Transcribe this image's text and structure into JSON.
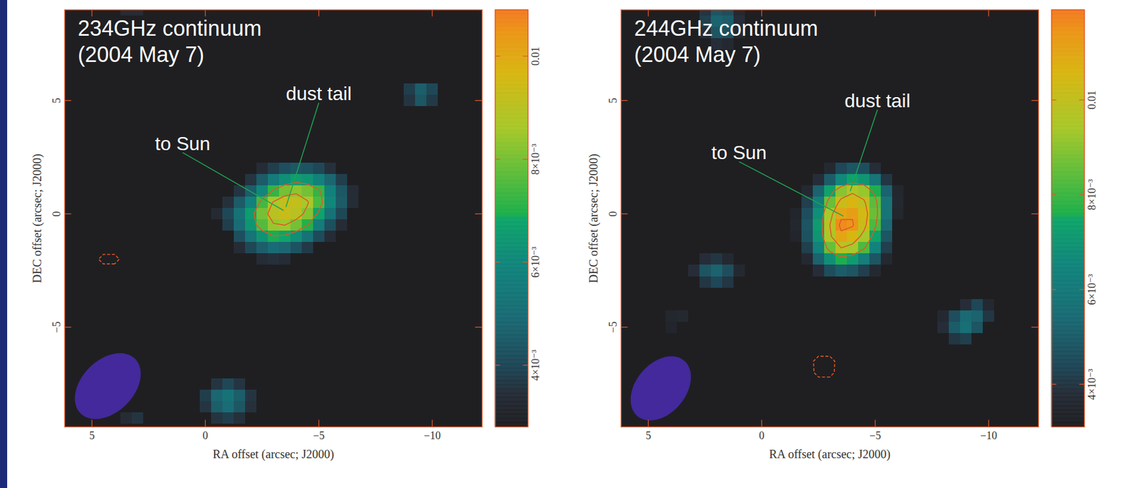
{
  "chart_data": [
    {
      "type": "heatmap",
      "title": "234GHz continuum",
      "subtitle": "(2004 May 7)",
      "x_label": "RA offset (arcsec; J2000)",
      "y_label": "DEC offset (arcsec; J2000)",
      "xlim": [
        6.2,
        -12.2
      ],
      "ylim": [
        -9.4,
        9.0
      ],
      "xticks": [
        5,
        0,
        -5,
        -10
      ],
      "yticks": [
        -5,
        0,
        5
      ],
      "map": {
        "ra_range": [
          6.25,
          -12.25
        ],
        "dec_range": [
          9.25,
          -9.75
        ],
        "step": 0.5,
        "floor": 0,
        "patches": [
          {
            "ra": -0.5,
            "dec": 2.0,
            "values": [
              [
                0,
                0,
                0,
                0,
                0.0034,
                0.0038,
                0.0042,
                0.0044,
                0.0043,
                0.004,
                0.0035,
                0,
                0
              ],
              [
                0,
                0,
                0,
                0.0036,
                0.0045,
                0.0055,
                0.0062,
                0.0066,
                0.0064,
                0.0058,
                0.0048,
                0.0038,
                0
              ],
              [
                0,
                0,
                0.0036,
                0.0046,
                0.006,
                0.0072,
                0.008,
                0.0083,
                0.008,
                0.0072,
                0.0058,
                0.0044,
                0.0034
              ],
              [
                0,
                0.0035,
                0.0045,
                0.0058,
                0.0074,
                0.0086,
                0.0092,
                0.0092,
                0.0086,
                0.0075,
                0.006,
                0.0045,
                0.0034
              ],
              [
                0.0033,
                0.004,
                0.0052,
                0.0066,
                0.008,
                0.009,
                0.0093,
                0.009,
                0.0082,
                0.0068,
                0.0052,
                0.004,
                0
              ],
              [
                0,
                0.0038,
                0.005,
                0.0064,
                0.0076,
                0.0084,
                0.0085,
                0.008,
                0.007,
                0.0056,
                0.0042,
                0.0034,
                0
              ],
              [
                0,
                0,
                0.0042,
                0.0053,
                0.0063,
                0.0069,
                0.0068,
                0.0062,
                0.0052,
                0.0041,
                0.0034,
                0,
                0
              ],
              [
                0,
                0,
                0.0034,
                0.004,
                0.0046,
                0.005,
                0.0048,
                0.0043,
                0.0037,
                0,
                0,
                0,
                0
              ],
              [
                0,
                0,
                0,
                0,
                0.0034,
                0.0035,
                0.0034,
                0,
                0,
                0,
                0,
                0,
                0
              ]
            ]
          },
          {
            "ra": -9.0,
            "dec": 5.5,
            "values": [
              [
                0.0038,
                0.0046,
                0.004
              ],
              [
                0.0036,
                0.0044,
                0.0037
              ]
            ]
          },
          {
            "ra": 0.0,
            "dec": -7.5,
            "values": [
              [
                0,
                0.0036,
                0.004,
                0.0036,
                0
              ],
              [
                0.0038,
                0.0048,
                0.0052,
                0.0046,
                0.0036
              ],
              [
                0.0036,
                0.0046,
                0.005,
                0.0044,
                0.0035
              ],
              [
                0,
                0.0036,
                0.0038,
                0.0035,
                0
              ]
            ]
          },
          {
            "ra": 3.5,
            "dec": -9.0,
            "values": [
              [
                0.0034,
                0.0036
              ]
            ]
          },
          {
            "ra": 3.5,
            "dec": 9.0,
            "values": [
              [
                0.0034,
                0.0034
              ]
            ]
          },
          {
            "ra": 4.5,
            "dec": -2.0,
            "values": [
              [
                -0.006,
                -0.006
              ]
            ]
          }
        ]
      },
      "contours": [
        {
          "level": -0.0035,
          "line_style": "dashed"
        },
        {
          "level": 0.007,
          "line_style": "solid"
        },
        {
          "level": 0.0085,
          "line_style": "solid"
        }
      ],
      "colorbar": {
        "range": [
          0.0028,
          0.0109
        ],
        "ticks": [
          {
            "value": 0.004,
            "label": "4×10⁻³"
          },
          {
            "value": 0.006,
            "label": "6×10⁻³"
          },
          {
            "value": 0.008,
            "label": "8×10⁻³"
          },
          0.01
        ]
      },
      "beam": {
        "ra": 4.3,
        "dec": -7.6,
        "major": 3.4,
        "minor": 2.3,
        "pa": -45
      },
      "annotations": [
        {
          "text": "to Sun",
          "text_ra": 1.0,
          "text_dec": 2.7,
          "ra": -3.45,
          "dec": 0.15
        },
        {
          "text": "dust tail",
          "text_ra": -5.0,
          "text_dec": 4.9,
          "ra": -3.55,
          "dec": 0.3
        }
      ]
    },
    {
      "type": "heatmap",
      "title": "244GHz continuum",
      "subtitle": "(2004 May 7)",
      "x_label": "RA offset (arcsec; J2000)",
      "y_label": "DEC offset (arcsec; J2000)",
      "xlim": [
        6.2,
        -12.2
      ],
      "ylim": [
        -9.4,
        9.0
      ],
      "xticks": [
        5,
        0,
        -5,
        -10
      ],
      "yticks": [
        -5,
        0,
        5
      ],
      "map": {
        "ra_range": [
          6.25,
          -12.25
        ],
        "dec_range": [
          9.25,
          -9.75
        ],
        "step": 0.5,
        "floor": 0,
        "patches": [
          {
            "ra": -1.5,
            "dec": 2.0,
            "values": [
              [
                0,
                0,
                0,
                0.0036,
                0.0044,
                0.0048,
                0.0046,
                0.0038,
                0,
                0
              ],
              [
                0,
                0,
                0.0038,
                0.005,
                0.0066,
                0.0074,
                0.007,
                0.0058,
                0.004,
                0
              ],
              [
                0,
                0.0036,
                0.0052,
                0.0074,
                0.009,
                0.0096,
                0.0092,
                0.0076,
                0.0052,
                0.0035
              ],
              [
                0,
                0.0042,
                0.0062,
                0.0086,
                0.0102,
                0.0106,
                0.01,
                0.0084,
                0.0058,
                0.0036
              ],
              [
                0.0034,
                0.0046,
                0.0068,
                0.0094,
                0.011,
                0.0112,
                0.0104,
                0.0086,
                0.0058,
                0.0035
              ],
              [
                0.0035,
                0.0048,
                0.0072,
                0.0098,
                0.0116,
                0.0114,
                0.0102,
                0.0082,
                0.0054,
                0
              ],
              [
                0.0034,
                0.0047,
                0.007,
                0.0096,
                0.011,
                0.0106,
                0.0094,
                0.0074,
                0.0048,
                0
              ],
              [
                0,
                0.0042,
                0.0064,
                0.0086,
                0.0098,
                0.0094,
                0.0082,
                0.0064,
                0.0042,
                0
              ],
              [
                0,
                0.0036,
                0.0052,
                0.0068,
                0.0076,
                0.0072,
                0.0062,
                0.0048,
                0.0036,
                0
              ],
              [
                0,
                0,
                0.0038,
                0.0046,
                0.005,
                0.0048,
                0.0042,
                0.0036,
                0,
                0
              ]
            ]
          },
          {
            "ra": 2.5,
            "dec": 9.0,
            "values": [
              [
                0.004,
                0.0048,
                0.0046,
                0.0036
              ],
              [
                0.0042,
                0.0052,
                0.005,
                0.0038
              ],
              [
                0.0038,
                0.0048,
                0.0046,
                0.0036
              ],
              [
                0,
                0.0038,
                0.0036,
                0
              ]
            ]
          },
          {
            "ra": 3.0,
            "dec": -2.0,
            "values": [
              [
                0,
                0.0038,
                0.004,
                0.0036,
                0
              ],
              [
                0.0038,
                0.0048,
                0.0052,
                0.0046,
                0.0036
              ],
              [
                0,
                0.004,
                0.0044,
                0.004,
                0
              ]
            ]
          },
          {
            "ra": -8.0,
            "dec": -4.0,
            "values": [
              [
                0,
                0,
                0.0038,
                0.0044,
                0.0036
              ],
              [
                0.0036,
                0.0046,
                0.0054,
                0.0052,
                0.004
              ],
              [
                0.0038,
                0.005,
                0.0056,
                0.0048,
                0
              ],
              [
                0,
                0.004,
                0.0042,
                0,
                0
              ]
            ]
          },
          {
            "ra": 4.0,
            "dec": -4.5,
            "values": [
              [
                0.0035,
                0.0036
              ],
              [
                0.0034,
                0
              ]
            ]
          },
          {
            "ra": -2.5,
            "dec": -6.5,
            "values": [
              [
                -0.0062,
                -0.0062
              ],
              [
                -0.0058,
                -0.0058
              ]
            ]
          }
        ]
      },
      "contours": [
        {
          "level": -0.0035,
          "line_style": "dashed"
        },
        {
          "level": 0.008,
          "line_style": "solid"
        },
        {
          "level": 0.0098,
          "line_style": "solid"
        },
        {
          "level": 0.0113,
          "line_style": "solid"
        }
      ],
      "colorbar": {
        "range": [
          0.0031,
          0.0119
        ],
        "ticks": [
          {
            "value": 0.004,
            "label": "4×10⁻³"
          },
          {
            "value": 0.006,
            "label": "6×10⁻³"
          },
          {
            "value": 0.008,
            "label": "8×10⁻³"
          },
          0.01
        ]
      },
      "beam": {
        "ra": 4.45,
        "dec": -7.7,
        "major": 3.2,
        "minor": 2.2,
        "pa": -40
      },
      "annotations": [
        {
          "text": "to Sun",
          "text_ra": 1.0,
          "text_dec": 2.3,
          "ra": -3.6,
          "dec": -0.1
        },
        {
          "text": "dust tail",
          "text_ra": -5.1,
          "text_dec": 4.6,
          "ra": -3.9,
          "dec": 1.0
        }
      ]
    }
  ]
}
